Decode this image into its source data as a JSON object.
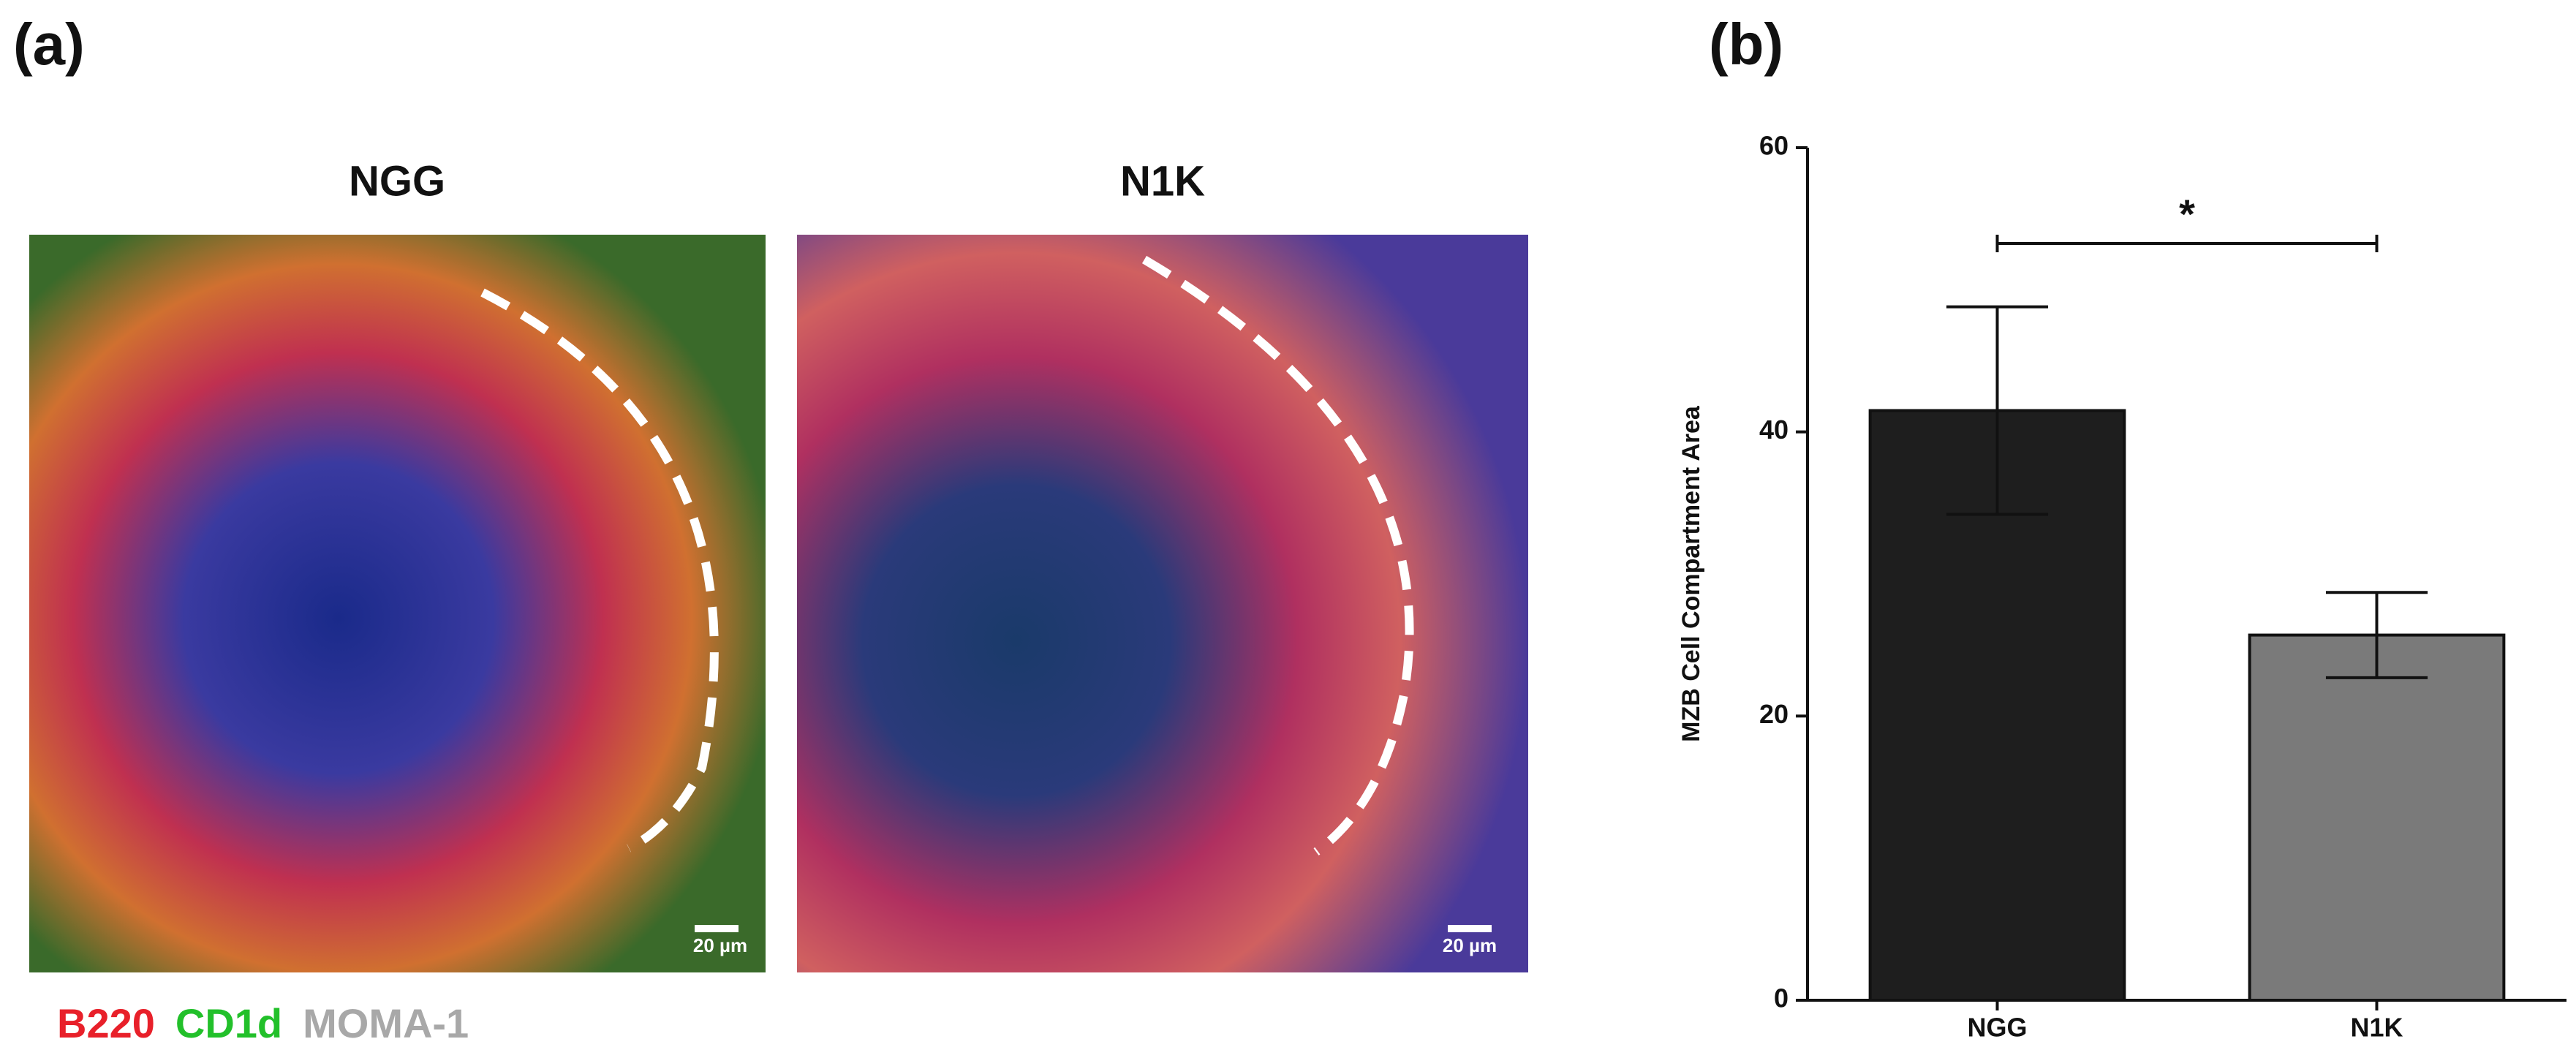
{
  "panel_a": {
    "label": "(a)",
    "images": [
      {
        "title": "NGG",
        "scale_bar": "20 µm"
      },
      {
        "title": "N1K",
        "scale_bar": "20 µm"
      }
    ],
    "legend": [
      {
        "text": "B220",
        "color": "#e8202a"
      },
      {
        "text": "CD1d",
        "color": "#22c02a"
      },
      {
        "text": "MOMA-1",
        "color": "#a8a8a8"
      }
    ]
  },
  "chart_data": {
    "type": "bar",
    "panel_label": "(b)",
    "y_label": "MZB Cell Compartment Area",
    "categories": [
      "NGG",
      "N1K"
    ],
    "values": [
      41.5,
      25.7
    ],
    "errors": [
      7.3,
      3.0
    ],
    "colors": [
      "#1e1e1e",
      "#7a7a7a"
    ],
    "ylim": [
      0,
      60
    ],
    "yticks": [
      0,
      20,
      40,
      60
    ],
    "annotation": "*"
  }
}
